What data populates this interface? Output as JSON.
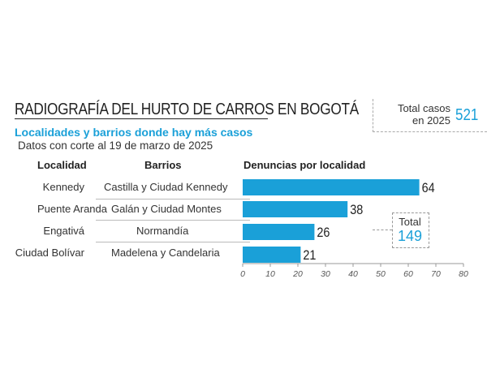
{
  "header": {
    "title": "RADIOGRAFÍA DEL HURTO DE CARROS EN BOGOTÁ",
    "subtitle": "Localidades y barrios donde hay más casos",
    "dateline": "Datos con corte al 19 de marzo de 2025",
    "total_label": "Total casos en 2025",
    "total_value": "521"
  },
  "table": {
    "col_localidad": "Localidad",
    "col_barrios": "Barrios",
    "col_denuncias": "Denuncias por localidad",
    "rows": [
      {
        "localidad": "Kennedy",
        "barrios": "Castilla y Ciudad Kennedy"
      },
      {
        "localidad": "Puente Aranda",
        "barrios": "Galán y Ciudad Montes"
      },
      {
        "localidad": "Engativá",
        "barrios": "Normandía"
      },
      {
        "localidad": "Ciudad Bolívar",
        "barrios": "Madelena y Candelaria"
      }
    ]
  },
  "inner_total": {
    "label": "Total",
    "value": "149"
  },
  "colors": {
    "bar": "#1aa0d8",
    "accent": "#1aa0d8"
  },
  "chart_data": {
    "type": "bar",
    "orientation": "horizontal",
    "categories": [
      "Kennedy",
      "Puente Aranda",
      "Engativá",
      "Ciudad Bolívar"
    ],
    "values": [
      64,
      38,
      26,
      21
    ],
    "value_labels": [
      "64",
      "38",
      "26",
      "21"
    ],
    "title": "Denuncias por localidad",
    "xlim": [
      0,
      80
    ],
    "xticks": [
      "0",
      "10",
      "20",
      "30",
      "40",
      "50",
      "60",
      "70",
      "80"
    ],
    "grid": false
  }
}
